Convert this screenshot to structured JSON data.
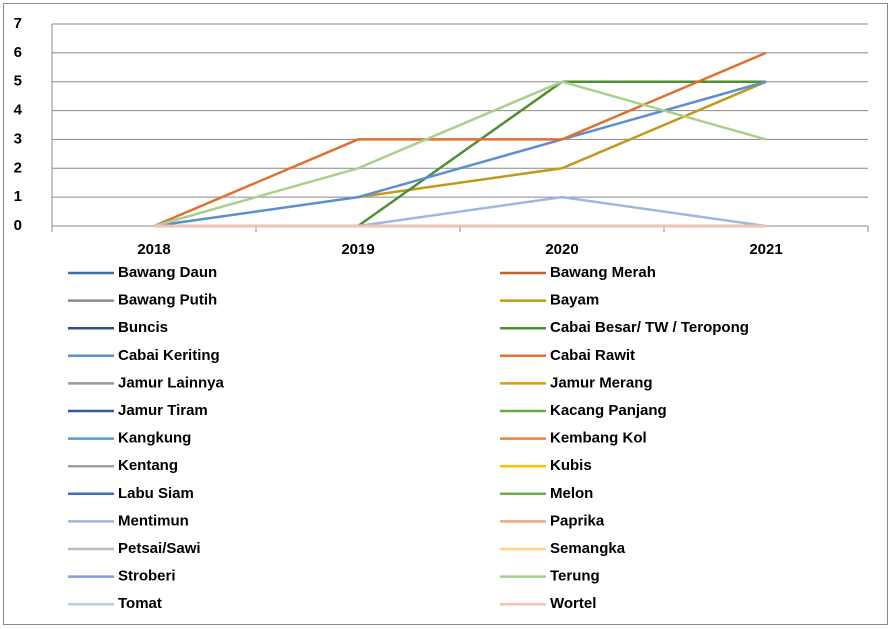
{
  "chart_data": {
    "type": "line",
    "categories": [
      "2018",
      "2019",
      "2020",
      "2021"
    ],
    "ylim": [
      0,
      7
    ],
    "yticks": [
      0,
      1,
      2,
      3,
      4,
      5,
      6,
      7
    ],
    "grid": true,
    "legend": "bottom",
    "series": [
      {
        "name": "Bawang Daun",
        "color": "#3a6fa8",
        "values": [
          0,
          0,
          0,
          0
        ]
      },
      {
        "name": "Bawang Merah",
        "color": "#c0622b",
        "values": [
          0,
          0,
          0,
          0
        ]
      },
      {
        "name": "Bawang Putih",
        "color": "#8c8c8c",
        "values": [
          0,
          0,
          0,
          0
        ]
      },
      {
        "name": "Bayam",
        "color": "#c09a1a",
        "values": [
          null,
          1,
          2,
          5
        ]
      },
      {
        "name": "Buncis",
        "color": "#2a4f8a",
        "values": [
          0,
          0,
          0,
          0
        ]
      },
      {
        "name": "Cabai Besar/ TW / Teropong",
        "color": "#4f8f30",
        "values": [
          null,
          0,
          5,
          5
        ]
      },
      {
        "name": "Cabai Keriting",
        "color": "#5b8fd0",
        "values": [
          0,
          1,
          3,
          5
        ]
      },
      {
        "name": "Cabai Rawit",
        "color": "#e07030",
        "values": [
          0,
          3,
          3,
          6
        ]
      },
      {
        "name": "Jamur Lainnya",
        "color": "#999999",
        "values": [
          0,
          0,
          0,
          0
        ]
      },
      {
        "name": "Jamur Merang",
        "color": "#d4a017",
        "values": [
          0,
          0,
          0,
          0
        ]
      },
      {
        "name": "Jamur Tiram",
        "color": "#3355aa",
        "values": [
          0,
          0,
          0,
          0
        ]
      },
      {
        "name": "Kacang Panjang",
        "color": "#6aaa3a",
        "values": [
          0,
          0,
          0,
          0
        ]
      },
      {
        "name": "Kangkung",
        "color": "#5a9ad8",
        "values": [
          0,
          0,
          0,
          0
        ]
      },
      {
        "name": "Kembang Kol",
        "color": "#e8813a",
        "values": [
          0,
          0,
          0,
          0
        ]
      },
      {
        "name": "Kentang",
        "color": "#a0a0a0",
        "values": [
          0,
          0,
          0,
          0
        ]
      },
      {
        "name": "Kubis",
        "color": "#ffc000",
        "values": [
          0,
          0,
          0,
          0
        ]
      },
      {
        "name": "Labu Siam",
        "color": "#3e6ec0",
        "values": [
          0,
          0,
          0,
          0
        ]
      },
      {
        "name": "Melon",
        "color": "#70ad47",
        "values": [
          0,
          0,
          0,
          0
        ]
      },
      {
        "name": "Mentimun",
        "color": "#9ab8e0",
        "values": [
          null,
          0,
          1,
          0
        ]
      },
      {
        "name": "Paprika",
        "color": "#f4a582",
        "values": [
          0,
          0,
          0,
          0
        ]
      },
      {
        "name": "Petsai/Sawi",
        "color": "#bbbbbb",
        "values": [
          0,
          0,
          0,
          0
        ]
      },
      {
        "name": "Semangka",
        "color": "#ffd580",
        "values": [
          0,
          0,
          0,
          0
        ]
      },
      {
        "name": "Stroberi",
        "color": "#8a9ad8",
        "values": [
          0,
          0,
          0,
          0
        ]
      },
      {
        "name": "Terung",
        "color": "#a9d08e",
        "values": [
          0,
          2,
          5,
          3
        ]
      },
      {
        "name": "Tomat",
        "color": "#b4cde8",
        "values": [
          0,
          0,
          0,
          0
        ]
      },
      {
        "name": "Wortel",
        "color": "#f8c0b0",
        "values": [
          0,
          0,
          0,
          0
        ]
      }
    ]
  }
}
